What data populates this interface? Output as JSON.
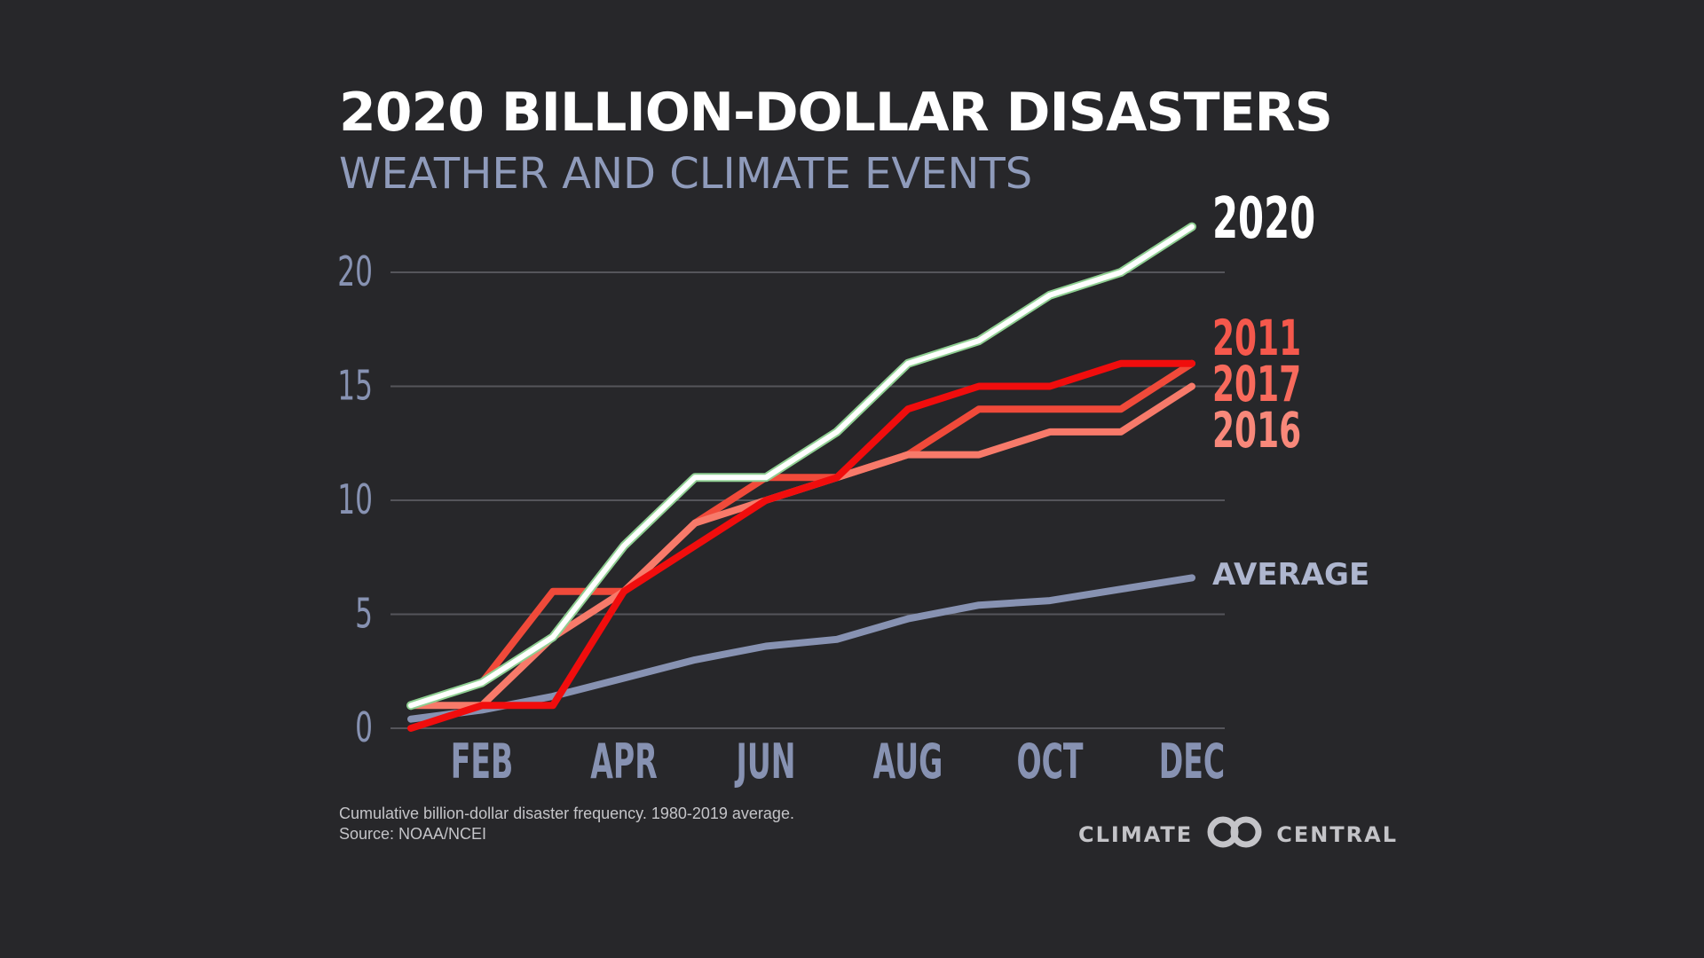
{
  "header": {
    "title": "2020 BILLION-DOLLAR DISASTERS",
    "subtitle": "WEATHER AND CLIMATE EVENTS"
  },
  "footer": {
    "note_line1": "Cumulative billion-dollar disaster frequency. 1980-2019 average.",
    "note_line2": "Source: NOAA/NCEI",
    "logo_left": "CLIMATE",
    "logo_right": "CENTRAL"
  },
  "chart_data": {
    "type": "line",
    "title": "2020 BILLION-DOLLAR DISASTERS",
    "subtitle": "WEATHER AND CLIMATE EVENTS",
    "x": [
      1,
      2,
      3,
      4,
      5,
      6,
      7,
      8,
      9,
      10,
      11,
      12
    ],
    "x_ticks": [
      {
        "x": 2,
        "label": "FEB"
      },
      {
        "x": 4,
        "label": "APR"
      },
      {
        "x": 6,
        "label": "JUN"
      },
      {
        "x": 8,
        "label": "AUG"
      },
      {
        "x": 10,
        "label": "OCT"
      },
      {
        "x": 12,
        "label": "DEC"
      }
    ],
    "xlim": [
      1,
      12
    ],
    "ylim": [
      0,
      22
    ],
    "y_ticks": [
      0,
      5,
      10,
      15,
      20
    ],
    "grid": true,
    "legend": "direct labels at line ends (right)",
    "series": [
      {
        "name": "AVERAGE",
        "color": "#8792b2",
        "values": [
          0.4,
          0.8,
          1.4,
          2.2,
          3.0,
          3.6,
          3.9,
          4.8,
          5.4,
          5.6,
          6.1,
          6.6
        ]
      },
      {
        "name": "2017",
        "color": "#f04a3a",
        "values": [
          1,
          2,
          6,
          6,
          9,
          11,
          11,
          12,
          14,
          14,
          14,
          16
        ]
      },
      {
        "name": "2016",
        "color": "#f77a6a",
        "values": [
          1,
          1,
          4,
          6,
          9,
          10,
          11,
          12,
          12,
          13,
          13,
          15
        ]
      },
      {
        "name": "2011",
        "color": "#f00d0d",
        "values": [
          0,
          1,
          1,
          6,
          8,
          10,
          11,
          14,
          15,
          15,
          16,
          16
        ]
      },
      {
        "name": "2020",
        "color": "#ffffff",
        "values": [
          1,
          2,
          4,
          8,
          11,
          11,
          13,
          16,
          17,
          19,
          20,
          22
        ]
      }
    ]
  }
}
